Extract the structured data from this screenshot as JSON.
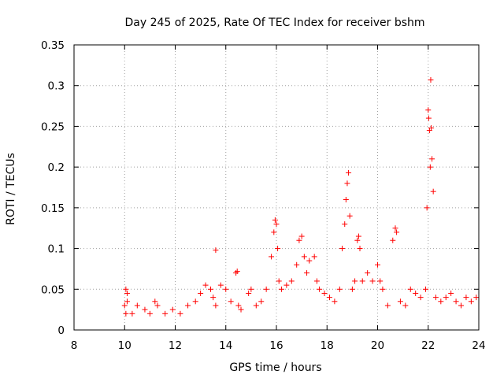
{
  "chart_data": {
    "type": "scatter",
    "title": "Day 245 of 2025, Rate Of TEC Index for receiver bshm",
    "xlabel": "GPS time / hours",
    "ylabel": "ROTI / TECUs",
    "xlim": [
      8,
      24
    ],
    "ylim": [
      0,
      0.35
    ],
    "xticks": [
      8,
      10,
      12,
      14,
      16,
      18,
      20,
      22,
      24
    ],
    "yticks": [
      0,
      0.05,
      0.1,
      0.15,
      0.2,
      0.25,
      0.3,
      0.35
    ],
    "xtick_labels": [
      "8",
      "10",
      "12",
      "14",
      "16",
      "18",
      "20",
      "22",
      "24"
    ],
    "ytick_labels": [
      "0",
      "0.05",
      "0.1",
      "0.15",
      "0.2",
      "0.25",
      "0.3",
      "0.35"
    ],
    "grid": true,
    "marker": "+",
    "color": "#ff0000",
    "series": [
      {
        "name": "ROTI",
        "x": [
          10.05,
          10.1,
          10.3,
          10.5,
          10.8,
          11.0,
          11.2,
          11.3,
          11.6,
          11.9,
          12.2,
          12.5,
          12.8,
          13.0,
          13.2,
          13.4,
          13.5,
          13.6,
          13.8,
          14.0,
          14.2,
          14.4,
          14.5,
          14.6,
          14.9,
          15.0,
          15.2,
          15.4,
          15.6,
          15.8,
          15.9,
          15.95,
          16.0,
          16.05,
          16.1,
          16.2,
          16.4,
          16.6,
          16.8,
          16.9,
          17.0,
          17.1,
          17.2,
          17.3,
          17.5,
          17.6,
          17.7,
          17.9,
          18.1,
          18.3,
          18.5,
          18.6,
          18.7,
          18.75,
          18.8,
          18.85,
          18.9,
          19.0,
          19.1,
          19.2,
          19.25,
          19.3,
          19.4,
          19.6,
          19.8,
          20.0,
          20.1,
          20.2,
          20.4,
          20.6,
          20.7,
          20.75,
          20.9,
          21.1,
          21.3,
          21.5,
          21.7,
          21.9,
          21.95,
          22.0,
          22.02,
          22.05,
          22.08,
          22.1,
          22.12,
          22.15,
          22.2,
          22.3,
          22.5,
          22.7,
          22.9,
          23.1,
          23.3,
          23.5,
          23.7,
          23.9,
          13.6,
          14.45,
          10.0,
          10.05,
          10.1
        ],
        "y": [
          0.05,
          0.045,
          0.02,
          0.03,
          0.025,
          0.02,
          0.035,
          0.03,
          0.02,
          0.025,
          0.02,
          0.03,
          0.035,
          0.045,
          0.055,
          0.05,
          0.04,
          0.03,
          0.055,
          0.05,
          0.035,
          0.07,
          0.03,
          0.025,
          0.045,
          0.05,
          0.03,
          0.035,
          0.05,
          0.09,
          0.12,
          0.135,
          0.13,
          0.1,
          0.06,
          0.05,
          0.055,
          0.06,
          0.08,
          0.11,
          0.115,
          0.09,
          0.07,
          0.085,
          0.09,
          0.06,
          0.05,
          0.045,
          0.04,
          0.035,
          0.05,
          0.1,
          0.13,
          0.16,
          0.18,
          0.193,
          0.14,
          0.05,
          0.06,
          0.11,
          0.115,
          0.1,
          0.06,
          0.07,
          0.06,
          0.08,
          0.06,
          0.05,
          0.03,
          0.11,
          0.125,
          0.12,
          0.035,
          0.03,
          0.05,
          0.045,
          0.04,
          0.05,
          0.15,
          0.27,
          0.26,
          0.245,
          0.2,
          0.307,
          0.248,
          0.21,
          0.17,
          0.04,
          0.035,
          0.04,
          0.045,
          0.035,
          0.03,
          0.04,
          0.035,
          0.04,
          0.098,
          0.072,
          0.03,
          0.02,
          0.035
        ]
      }
    ]
  }
}
